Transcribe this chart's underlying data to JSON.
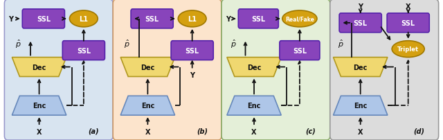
{
  "bg_colors": [
    "#d8e4f0",
    "#fce4cc",
    "#e4efd8",
    "#dcdcdc"
  ],
  "bg_borders": [
    "#9999cc",
    "#cc9966",
    "#88aa66",
    "#999999"
  ],
  "panel_labels": [
    "(a)",
    "(b)",
    "(c)",
    "(d)"
  ],
  "ssl_color": "#8844bb",
  "ssl_border": "#5522aa",
  "dec_color": "#f0d870",
  "dec_border": "#b09820",
  "enc_color": "#aec6e8",
  "enc_border": "#6688bb",
  "loss_color": "#d4a010",
  "loss_border": "#a07800",
  "text_white": "white",
  "text_dark": "#111111",
  "arrow_color": "#111111",
  "lw": 1.3
}
